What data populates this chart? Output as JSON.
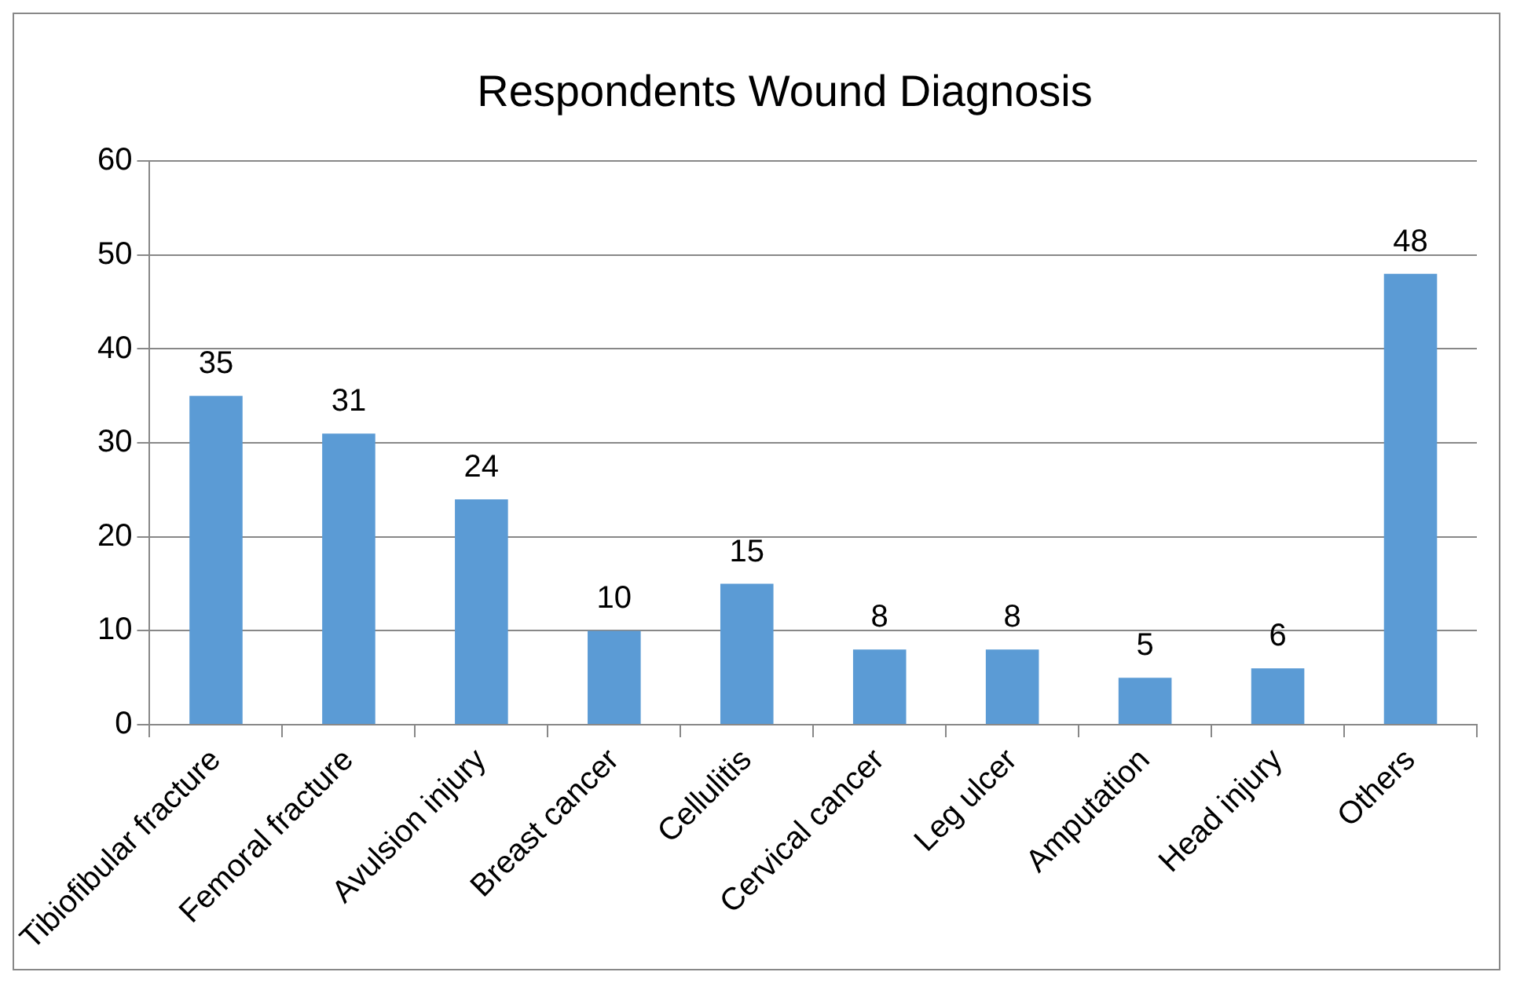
{
  "chart_data": {
    "type": "bar",
    "title": "Respondents Wound Diagnosis",
    "categories": [
      "Tibiofibular fracture",
      "Femoral fracture",
      "Avulsion injury",
      "Breast cancer",
      "Cellulitis",
      "Cervical cancer",
      "Leg ulcer",
      "Amputation",
      "Head injury",
      "Others"
    ],
    "values": [
      35,
      31,
      24,
      10,
      15,
      8,
      8,
      5,
      6,
      48
    ],
    "color": "#5b9bd5",
    "ylim": [
      0,
      60
    ],
    "yticks": [
      0,
      10,
      20,
      30,
      40,
      50,
      60
    ],
    "grid": "y",
    "data_labels": true
  }
}
